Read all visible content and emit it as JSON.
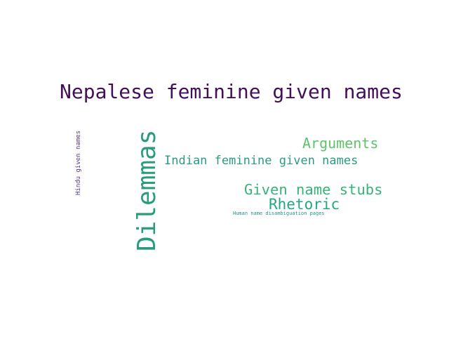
{
  "words": [
    {
      "text": "Nepalese feminine given names",
      "color": "#440f5a"
    },
    {
      "text": "Dilemmas",
      "color": "#2a9c7e"
    },
    {
      "text": "Arguments",
      "color": "#5ec46a"
    },
    {
      "text": "Indian feminine given names",
      "color": "#2a9a84"
    },
    {
      "text": "Given name stubs",
      "color": "#36b378"
    },
    {
      "text": "Rhetoric",
      "color": "#25a682"
    },
    {
      "text": "Human name disambiguation pages",
      "color": "#2a8f85"
    },
    {
      "text": "Hindu given names",
      "color": "#5a3a8f"
    }
  ]
}
